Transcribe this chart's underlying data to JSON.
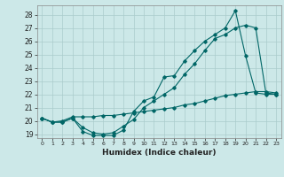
{
  "xlabel": "Humidex (Indice chaleur)",
  "bg_color": "#cce8e8",
  "grid_color": "#aacccc",
  "line_color": "#006666",
  "xlim": [
    -0.5,
    23.5
  ],
  "ylim": [
    18.7,
    28.7
  ],
  "xticks": [
    0,
    1,
    2,
    3,
    4,
    5,
    6,
    7,
    8,
    9,
    10,
    11,
    12,
    13,
    14,
    15,
    16,
    17,
    18,
    19,
    20,
    21,
    22,
    23
  ],
  "yticks": [
    19,
    20,
    21,
    22,
    23,
    24,
    25,
    26,
    27,
    28
  ],
  "series1_x": [
    0,
    1,
    2,
    3,
    4,
    5,
    6,
    7,
    8,
    9,
    10,
    11,
    12,
    13,
    14,
    15,
    16,
    17,
    18,
    19,
    20,
    21,
    22,
    23
  ],
  "series1_y": [
    20.2,
    19.9,
    19.9,
    20.2,
    19.2,
    18.9,
    18.9,
    18.9,
    19.3,
    20.7,
    21.5,
    21.8,
    23.3,
    23.4,
    24.5,
    25.3,
    26.0,
    26.5,
    27.0,
    28.3,
    24.9,
    22.1,
    22.0,
    22.0
  ],
  "series2_x": [
    0,
    1,
    2,
    3,
    4,
    5,
    6,
    7,
    8,
    9,
    10,
    11,
    12,
    13,
    14,
    15,
    16,
    17,
    18,
    19,
    20,
    21,
    22,
    23
  ],
  "series2_y": [
    20.2,
    19.9,
    19.9,
    20.2,
    19.5,
    19.1,
    19.0,
    19.1,
    19.6,
    20.1,
    21.0,
    21.5,
    22.0,
    22.5,
    23.5,
    24.3,
    25.3,
    26.2,
    26.5,
    27.0,
    27.2,
    27.0,
    22.1,
    22.0
  ],
  "series3_x": [
    0,
    1,
    2,
    3,
    4,
    5,
    6,
    7,
    8,
    9,
    10,
    11,
    12,
    13,
    14,
    15,
    16,
    17,
    18,
    19,
    20,
    21,
    22,
    23
  ],
  "series3_y": [
    20.2,
    19.9,
    20.0,
    20.3,
    20.3,
    20.3,
    20.4,
    20.4,
    20.5,
    20.6,
    20.7,
    20.8,
    20.9,
    21.0,
    21.2,
    21.3,
    21.5,
    21.7,
    21.9,
    22.0,
    22.1,
    22.2,
    22.2,
    22.1
  ]
}
